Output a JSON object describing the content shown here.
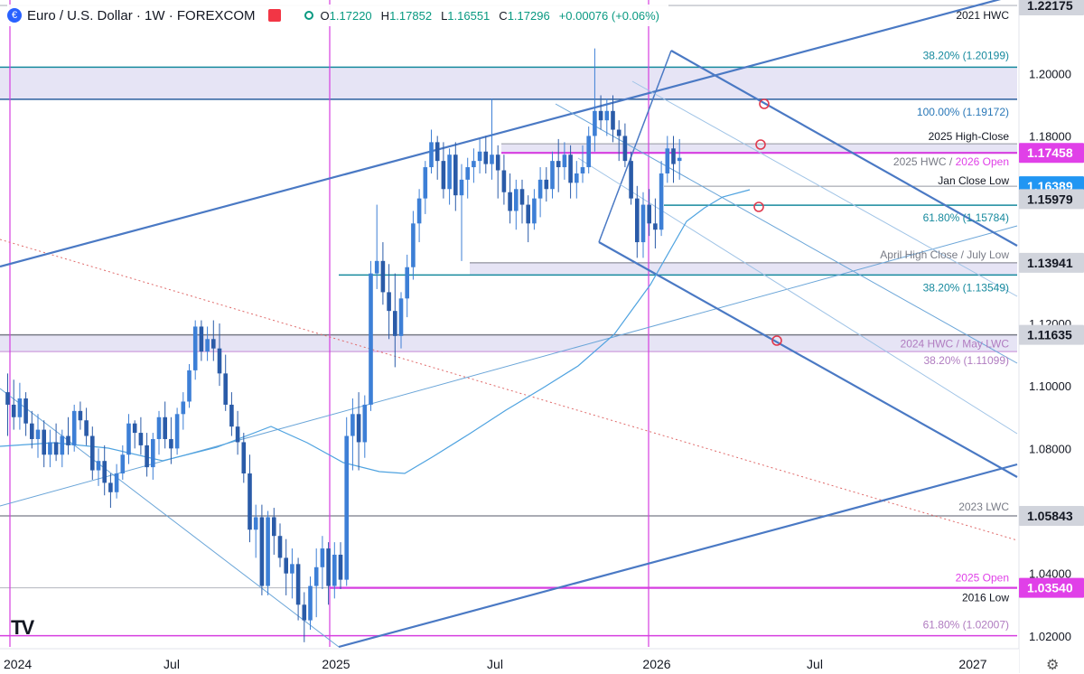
{
  "header": {
    "title": "Euro / U.S. Dollar · 1W · FOREXCOM",
    "symbol_glyph": "€",
    "open_label": "O",
    "open": "1.17220",
    "high_label": "H",
    "high": "1.17852",
    "low_label": "L",
    "low": "1.16551",
    "close_label": "C",
    "close": "1.17296",
    "change": "+0.00076 (+0.06%)",
    "accent_up": "#089981",
    "flag_color": "#f23645"
  },
  "logo_text": "TV",
  "chart_data": {
    "type": "candlestick",
    "x_ticks": [
      "2024",
      "Jul",
      "2025",
      "Jul",
      "2026",
      "Jul",
      "2027"
    ],
    "y_ticks": [
      "1.02000",
      "1.04000",
      "1.06000",
      "1.08000",
      "1.10000",
      "1.12000",
      "1.14000",
      "1.16000",
      "1.18000",
      "1.20000",
      "1.22000"
    ],
    "y_range": [
      1.0165,
      1.2235
    ],
    "x_range_weeks": [
      "2023-12",
      "2027-01"
    ],
    "ohlc_first_week": "2023-12-04",
    "ohlc_weekly": [
      [
        1.098,
        1.104,
        1.084,
        1.094
      ],
      [
        1.094,
        1.102,
        1.086,
        1.09
      ],
      [
        1.09,
        1.101,
        1.086,
        1.096
      ],
      [
        1.096,
        1.098,
        1.084,
        1.088
      ],
      [
        1.088,
        1.092,
        1.08,
        1.083
      ],
      [
        1.083,
        1.091,
        1.077,
        1.086
      ],
      [
        1.086,
        1.089,
        1.074,
        1.078
      ],
      [
        1.078,
        1.086,
        1.074,
        1.082
      ],
      [
        1.082,
        1.088,
        1.076,
        1.078
      ],
      [
        1.078,
        1.086,
        1.074,
        1.084
      ],
      [
        1.084,
        1.09,
        1.078,
        1.081
      ],
      [
        1.081,
        1.094,
        1.079,
        1.092
      ],
      [
        1.092,
        1.095,
        1.086,
        1.089
      ],
      [
        1.089,
        1.093,
        1.081,
        1.084
      ],
      [
        1.084,
        1.087,
        1.07,
        1.073
      ],
      [
        1.073,
        1.08,
        1.068,
        1.076
      ],
      [
        1.076,
        1.081,
        1.065,
        1.069
      ],
      [
        1.069,
        1.072,
        1.061,
        1.066
      ],
      [
        1.066,
        1.075,
        1.064,
        1.072
      ],
      [
        1.072,
        1.081,
        1.07,
        1.078
      ],
      [
        1.078,
        1.091,
        1.075,
        1.088
      ],
      [
        1.088,
        1.089,
        1.08,
        1.085
      ],
      [
        1.085,
        1.09,
        1.078,
        1.081
      ],
      [
        1.081,
        1.085,
        1.071,
        1.074
      ],
      [
        1.074,
        1.085,
        1.07,
        1.083
      ],
      [
        1.083,
        1.092,
        1.078,
        1.09
      ],
      [
        1.09,
        1.095,
        1.08,
        1.083
      ],
      [
        1.083,
        1.09,
        1.075,
        1.08
      ],
      [
        1.08,
        1.093,
        1.078,
        1.091
      ],
      [
        1.091,
        1.098,
        1.086,
        1.095
      ],
      [
        1.095,
        1.107,
        1.093,
        1.105
      ],
      [
        1.105,
        1.121,
        1.102,
        1.119
      ],
      [
        1.119,
        1.121,
        1.108,
        1.111
      ],
      [
        1.111,
        1.119,
        1.108,
        1.115
      ],
      [
        1.115,
        1.121,
        1.108,
        1.112
      ],
      [
        1.112,
        1.12,
        1.1,
        1.104
      ],
      [
        1.104,
        1.11,
        1.092,
        1.094
      ],
      [
        1.094,
        1.098,
        1.084,
        1.087
      ],
      [
        1.087,
        1.092,
        1.078,
        1.082
      ],
      [
        1.082,
        1.085,
        1.069,
        1.072
      ],
      [
        1.072,
        1.078,
        1.05,
        1.054
      ],
      [
        1.054,
        1.062,
        1.045,
        1.058
      ],
      [
        1.058,
        1.062,
        1.033,
        1.036
      ],
      [
        1.036,
        1.06,
        1.033,
        1.058
      ],
      [
        1.058,
        1.061,
        1.046,
        1.052
      ],
      [
        1.052,
        1.056,
        1.042,
        1.045
      ],
      [
        1.045,
        1.051,
        1.033,
        1.04
      ],
      [
        1.04,
        1.048,
        1.032,
        1.043
      ],
      [
        1.043,
        1.045,
        1.025,
        1.03
      ],
      [
        1.03,
        1.034,
        1.018,
        1.025
      ],
      [
        1.025,
        1.039,
        1.022,
        1.036
      ],
      [
        1.036,
        1.048,
        1.026,
        1.042
      ],
      [
        1.042,
        1.052,
        1.035,
        1.048
      ],
      [
        1.048,
        1.05,
        1.03,
        1.036
      ],
      [
        1.036,
        1.05,
        1.032,
        1.046
      ],
      [
        1.046,
        1.05,
        1.035,
        1.038
      ],
      [
        1.038,
        1.09,
        1.036,
        1.084
      ],
      [
        1.084,
        1.096,
        1.073,
        1.091
      ],
      [
        1.091,
        1.098,
        1.073,
        1.082
      ],
      [
        1.082,
        1.097,
        1.077,
        1.094
      ],
      [
        1.094,
        1.14,
        1.092,
        1.136
      ],
      [
        1.136,
        1.158,
        1.131,
        1.14
      ],
      [
        1.14,
        1.146,
        1.126,
        1.13
      ],
      [
        1.13,
        1.139,
        1.115,
        1.124
      ],
      [
        1.124,
        1.136,
        1.106,
        1.116
      ],
      [
        1.116,
        1.13,
        1.112,
        1.128
      ],
      [
        1.128,
        1.142,
        1.122,
        1.138
      ],
      [
        1.138,
        1.156,
        1.134,
        1.152
      ],
      [
        1.152,
        1.163,
        1.146,
        1.16
      ],
      [
        1.16,
        1.172,
        1.155,
        1.17
      ],
      [
        1.17,
        1.182,
        1.168,
        1.178
      ],
      [
        1.178,
        1.18,
        1.166,
        1.172
      ],
      [
        1.172,
        1.178,
        1.16,
        1.163
      ],
      [
        1.163,
        1.176,
        1.158,
        1.174
      ],
      [
        1.174,
        1.178,
        1.156,
        1.161
      ],
      [
        1.161,
        1.171,
        1.14,
        1.166
      ],
      [
        1.166,
        1.173,
        1.16,
        1.17
      ],
      [
        1.17,
        1.176,
        1.165,
        1.172
      ],
      [
        1.172,
        1.179,
        1.168,
        1.175
      ],
      [
        1.175,
        1.18,
        1.168,
        1.171
      ],
      [
        1.171,
        1.192,
        1.166,
        1.174
      ],
      [
        1.174,
        1.177,
        1.16,
        1.169
      ],
      [
        1.169,
        1.174,
        1.158,
        1.162
      ],
      [
        1.162,
        1.168,
        1.152,
        1.156
      ],
      [
        1.156,
        1.166,
        1.15,
        1.163
      ],
      [
        1.163,
        1.166,
        1.152,
        1.158
      ],
      [
        1.158,
        1.161,
        1.146,
        1.152
      ],
      [
        1.152,
        1.163,
        1.15,
        1.16
      ],
      [
        1.16,
        1.17,
        1.154,
        1.166
      ],
      [
        1.166,
        1.17,
        1.159,
        1.163
      ],
      [
        1.163,
        1.175,
        1.16,
        1.172
      ],
      [
        1.172,
        1.179,
        1.162,
        1.17
      ],
      [
        1.17,
        1.178,
        1.166,
        1.174
      ],
      [
        1.174,
        1.177,
        1.16,
        1.165
      ],
      [
        1.165,
        1.172,
        1.16,
        1.168
      ],
      [
        1.168,
        1.177,
        1.165,
        1.17
      ],
      [
        1.17,
        1.183,
        1.168,
        1.18
      ],
      [
        1.18,
        1.208,
        1.175,
        1.188
      ],
      [
        1.188,
        1.193,
        1.182,
        1.185
      ],
      [
        1.185,
        1.192,
        1.18,
        1.188
      ],
      [
        1.188,
        1.193,
        1.178,
        1.182
      ],
      [
        1.182,
        1.185,
        1.172,
        1.18
      ],
      [
        1.18,
        1.184,
        1.17,
        1.172
      ],
      [
        1.172,
        1.175,
        1.158,
        1.16
      ],
      [
        1.16,
        1.164,
        1.141,
        1.146
      ],
      [
        1.146,
        1.162,
        1.141,
        1.158
      ],
      [
        1.158,
        1.163,
        1.148,
        1.152
      ],
      [
        1.152,
        1.16,
        1.144,
        1.15
      ],
      [
        1.15,
        1.172,
        1.148,
        1.168
      ],
      [
        1.168,
        1.18,
        1.165,
        1.176
      ],
      [
        1.176,
        1.18,
        1.165,
        1.171
      ],
      [
        1.172,
        1.179,
        1.166,
        1.173
      ]
    ],
    "price_labels": [
      {
        "label": "1.22175",
        "value": 1.22175,
        "bg": "#d1d4dc",
        "fg": "#131722"
      },
      {
        "label": "1.17458",
        "value": 1.17458,
        "bg": "#e040e8",
        "fg": "#ffffff"
      },
      {
        "label": "1.16389",
        "value": 1.16389,
        "bg": "#2196f3",
        "fg": "#ffffff"
      },
      {
        "label": "1.15979",
        "value": 1.15979,
        "bg": "#d1d4dc",
        "fg": "#131722"
      },
      {
        "label": "1.13941",
        "value": 1.13941,
        "bg": "#d1d4dc",
        "fg": "#131722"
      },
      {
        "label": "1.11635",
        "value": 1.11635,
        "bg": "#d1d4dc",
        "fg": "#131722"
      },
      {
        "label": "1.05843",
        "value": 1.05843,
        "bg": "#d1d4dc",
        "fg": "#131722"
      },
      {
        "label": "1.03540",
        "value": 1.0354,
        "bg": "#e040e8",
        "fg": "#ffffff"
      }
    ],
    "annotations": [
      {
        "text": "2021 HWC",
        "value": 1.22175,
        "color": "#131722"
      },
      {
        "text": "38.20% (1.20199)",
        "value": 1.20199,
        "color": "#178a9e"
      },
      {
        "text": "100.00% (1.19172)",
        "value": 1.19172,
        "color": "#2a78b8"
      },
      {
        "text": "2025 High-Close",
        "value": 1.1775,
        "color": "#131722"
      },
      {
        "text": "2025 HWC / ",
        "text2": "2026 Open",
        "value": 1.17458,
        "color": "#787b86",
        "color2": "#e040e8"
      },
      {
        "text": "Jan Close Low",
        "value": 1.16389,
        "color": "#131722"
      },
      {
        "text": "61.80% (1.15784)",
        "value": 1.15784,
        "color": "#178a9e"
      },
      {
        "text": "April High Close / July Low",
        "value": 1.13941,
        "color": "#787b86"
      },
      {
        "text": "38.20% (1.13549)",
        "value": 1.13549,
        "color": "#178a9e"
      },
      {
        "text": "2024 HWC / May LWC",
        "value": 1.11635,
        "color": "#b07cc0"
      },
      {
        "text": "38.20% (1.11099)",
        "value": 1.11099,
        "color": "#b07cc0"
      },
      {
        "text": "2023 LWC",
        "value": 1.05843,
        "color": "#787b86"
      },
      {
        "text": "2025 Open",
        "value": 1.0354,
        "color": "#e040e8"
      },
      {
        "text": "2016 Low",
        "value": 1.0354,
        "color": "#131722"
      },
      {
        "text": "61.80% (1.02007)",
        "value": 1.02007,
        "color": "#b07cc0"
      }
    ],
    "colors": {
      "candle": "#2a5ba8",
      "candle_up": "#3d7fd6",
      "zone": "#e6e4f5",
      "magenta": "#d63ee0",
      "teal": "#178a9e",
      "fork": "#4a79c4",
      "fork_light": "#6aa5d8",
      "red_circle": "#e03a4e"
    }
  }
}
